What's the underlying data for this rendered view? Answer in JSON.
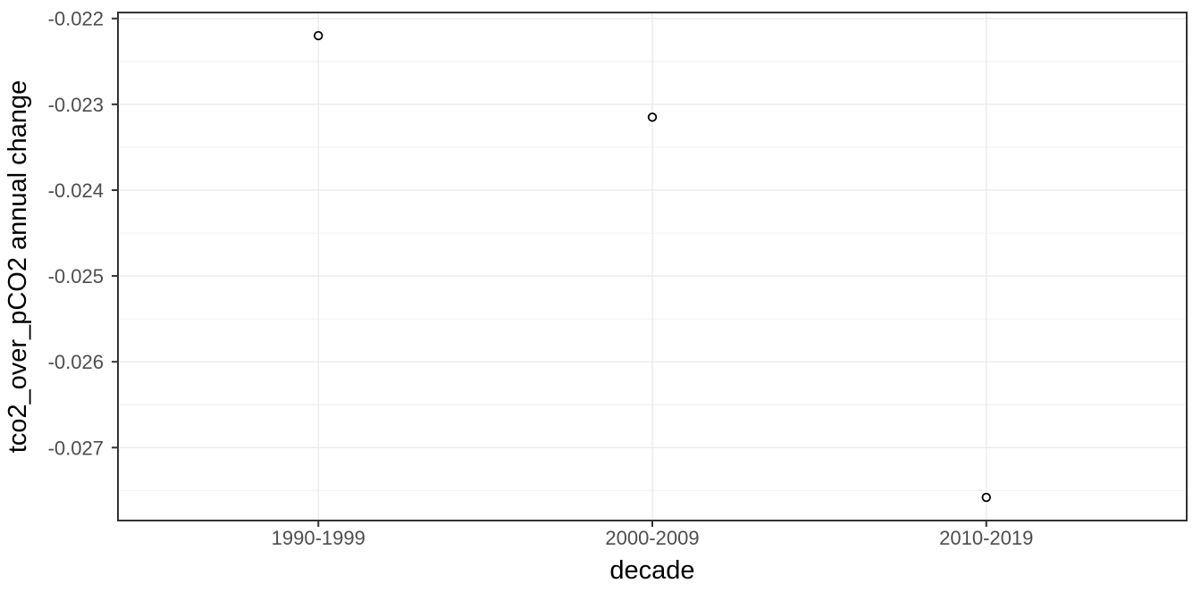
{
  "chart_data": {
    "type": "scatter",
    "title": "",
    "xlabel": "decade",
    "ylabel": "tco2_over_pCO2 annual change",
    "x_type": "categorical",
    "categories": [
      "1990-1999",
      "2000-2009",
      "2010-2019"
    ],
    "values": [
      -0.0222,
      -0.02315,
      -0.02758
    ],
    "y_tick_labels": [
      "-0.022",
      "-0.023",
      "-0.024",
      "-0.025",
      "-0.026",
      "-0.027"
    ],
    "y_tick_values": [
      -0.022,
      -0.023,
      -0.024,
      -0.025,
      -0.026,
      -0.027
    ],
    "ylim": [
      -0.02785,
      -0.02193
    ],
    "grid": "horizontal major+minor, vertical major only",
    "legend_position": "none",
    "point_style": "open-circle",
    "colors": {
      "background": "#ffffff",
      "panel_background": "#ffffff",
      "panel_border": "#333333",
      "grid_major": "#ebebeb",
      "grid_minor": "#f0f0f0",
      "tick_mark": "#333333",
      "tick_label": "#4d4d4d",
      "axis_title": "#000000",
      "point_stroke": "#000000"
    }
  }
}
